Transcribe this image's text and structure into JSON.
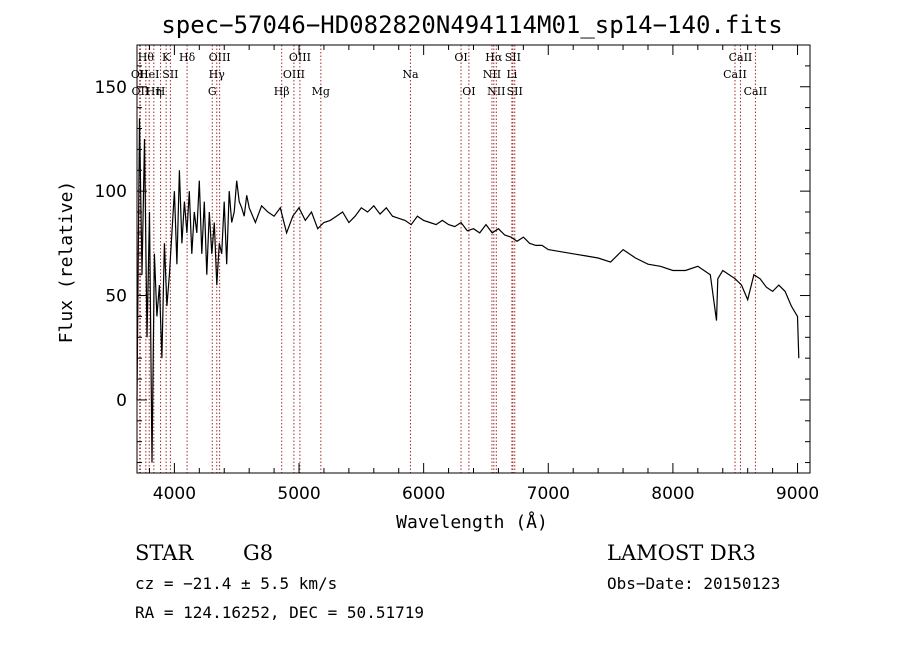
{
  "chart_data": {
    "type": "line",
    "title": "spec−57046−HD082820N494114M01_sp14−140.fits",
    "xlabel": "Wavelength (Å)",
    "ylabel": "Flux (relative)",
    "xlim": [
      3700,
      9100
    ],
    "ylim": [
      -35,
      170
    ],
    "x_ticks": [
      4000,
      5000,
      6000,
      7000,
      8000,
      9000
    ],
    "y_ticks": [
      0,
      50,
      100,
      150
    ],
    "grid": false,
    "line_color": "#000000",
    "marker_color": "#a52a2a",
    "series": [
      {
        "x": [
          3700,
          3720,
          3740,
          3760,
          3780,
          3800,
          3820,
          3840,
          3860,
          3880,
          3900,
          3920,
          3940,
          3960,
          3980,
          4000,
          4020,
          4040,
          4060,
          4080,
          4100,
          4120,
          4140,
          4160,
          4180,
          4200,
          4220,
          4240,
          4260,
          4280,
          4300,
          4320,
          4340,
          4360,
          4380,
          4400,
          4420,
          4440,
          4460,
          4480,
          4500,
          4520,
          4540,
          4560,
          4580,
          4600,
          4650,
          4700,
          4750,
          4800,
          4850,
          4900,
          4950,
          5000,
          5050,
          5100,
          5150,
          5200,
          5250,
          5300,
          5350,
          5400,
          5450,
          5500,
          5550,
          5600,
          5650,
          5700,
          5750,
          5800,
          5850,
          5900,
          5950,
          6000,
          6050,
          6100,
          6150,
          6200,
          6250,
          6300,
          6350,
          6400,
          6450,
          6500,
          6550,
          6600,
          6650,
          6700,
          6750,
          6800,
          6850,
          6900,
          6950,
          7000,
          7100,
          7200,
          7300,
          7400,
          7500,
          7600,
          7700,
          7800,
          7900,
          8000,
          8100,
          8200,
          8300,
          8350,
          8360,
          8400,
          8500,
          8550,
          8600,
          8650,
          8700,
          8750,
          8800,
          8850,
          8900,
          8950,
          9000,
          9010
        ],
        "y": [
          0,
          135,
          60,
          125,
          30,
          90,
          -30,
          70,
          40,
          55,
          20,
          75,
          45,
          60,
          80,
          100,
          65,
          110,
          75,
          95,
          80,
          100,
          70,
          90,
          80,
          105,
          70,
          95,
          60,
          90,
          70,
          85,
          55,
          75,
          70,
          95,
          65,
          100,
          85,
          90,
          105,
          95,
          92,
          88,
          98,
          92,
          85,
          93,
          90,
          88,
          92,
          80,
          88,
          92,
          86,
          90,
          82,
          85,
          86,
          88,
          90,
          85,
          88,
          92,
          90,
          93,
          89,
          92,
          88,
          87,
          86,
          84,
          88,
          86,
          85,
          84,
          86,
          84,
          83,
          85,
          81,
          82,
          80,
          84,
          80,
          82,
          79,
          78,
          76,
          78,
          75,
          74,
          74,
          72,
          71,
          70,
          69,
          68,
          66,
          72,
          68,
          65,
          64,
          62,
          62,
          64,
          60,
          38,
          58,
          62,
          58,
          55,
          48,
          60,
          58,
          54,
          52,
          55,
          52,
          45,
          40,
          20
        ]
      }
    ],
    "spectral_lines": [
      {
        "x": 3722,
        "label": "OII",
        "row": 2
      },
      {
        "x": 3727,
        "label": "OII",
        "row": 3
      },
      {
        "x": 3771,
        "label": "Hθ",
        "row": 1
      },
      {
        "x": 3798,
        "label": "HeI",
        "row": 2
      },
      {
        "x": 3835,
        "label": "Hη",
        "row": 3
      },
      {
        "x": 3889,
        "label": "H",
        "row": 3
      },
      {
        "x": 3934,
        "label": "K",
        "row": 1
      },
      {
        "x": 3968,
        "label": "SII",
        "row": 2
      },
      {
        "x": 4102,
        "label": "Hδ",
        "row": 1
      },
      {
        "x": 4304,
        "label": "G",
        "row": 3
      },
      {
        "x": 4340,
        "label": "Hγ",
        "row": 2
      },
      {
        "x": 4363,
        "label": "OIII",
        "row": 1
      },
      {
        "x": 4861,
        "label": "Hβ",
        "row": 3
      },
      {
        "x": 4959,
        "label": "OIII",
        "row": 2
      },
      {
        "x": 5007,
        "label": "OIII",
        "row": 1
      },
      {
        "x": 5175,
        "label": "Mg",
        "row": 3
      },
      {
        "x": 5894,
        "label": "Na",
        "row": 2
      },
      {
        "x": 6300,
        "label": "OI",
        "row": 1
      },
      {
        "x": 6363,
        "label": "OI",
        "row": 3
      },
      {
        "x": 6548,
        "label": "NII",
        "row": 2
      },
      {
        "x": 6563,
        "label": "Hα",
        "row": 1
      },
      {
        "x": 6583,
        "label": "NII",
        "row": 3
      },
      {
        "x": 6708,
        "label": "Li",
        "row": 2
      },
      {
        "x": 6716,
        "label": "SII",
        "row": 1
      },
      {
        "x": 6731,
        "label": "SII",
        "row": 3
      },
      {
        "x": 8498,
        "label": "CaII",
        "row": 2
      },
      {
        "x": 8542,
        "label": "CaII",
        "row": 1
      },
      {
        "x": 8662,
        "label": "CaII",
        "row": 3
      }
    ]
  },
  "info": {
    "object_class": "STAR",
    "subclass": "G8",
    "survey": "LAMOST DR3",
    "velocity": "cz = −21.4 ± 5.5 km/s",
    "obs_date": "Obs−Date: 20150123",
    "coords": "RA = 124.16252, DEC =  50.51719"
  }
}
